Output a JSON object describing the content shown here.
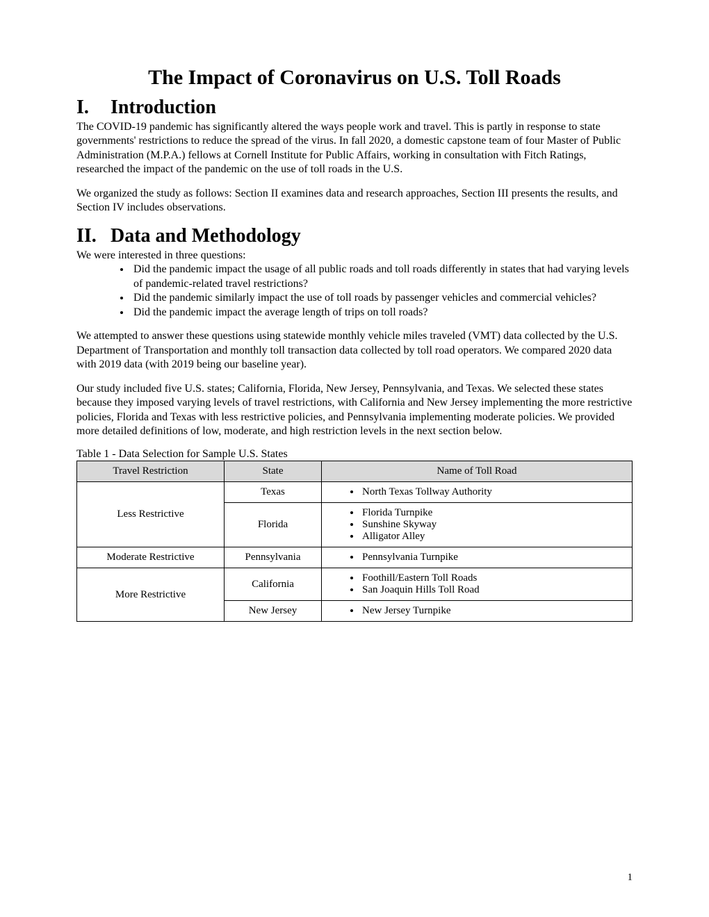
{
  "title": "The Impact of Coronavirus on U.S. Toll Roads",
  "section1": {
    "num": "I.",
    "heading": "Introduction",
    "p1": "The COVID-19 pandemic has significantly altered the ways people work and travel. This is partly in response to state governments' restrictions to reduce the spread of the virus. In fall 2020, a domestic capstone team of four Master of Public Administration (M.P.A.) fellows at Cornell Institute for Public Affairs, working in consultation with Fitch Ratings, researched the impact of the pandemic on the use of toll roads in the U.S.",
    "p2": "We organized the study as follows: Section II examines data and research approaches, Section III presents the results, and Section IV includes observations."
  },
  "section2": {
    "num": "II.",
    "heading": "Data and Methodology",
    "lead": "We were interested in three questions:",
    "q1": "Did the pandemic impact the usage of all public roads and toll roads differently in states that had varying levels of pandemic-related travel restrictions?",
    "q2": "Did the pandemic similarly impact the use of toll roads by passenger vehicles and commercial vehicles?",
    "q3": "Did the pandemic impact the average length of trips on toll roads?",
    "p1": "We attempted to answer these questions using statewide monthly vehicle miles traveled (VMT) data collected by the U.S. Department of Transportation and monthly toll transaction data collected by toll road operators. We compared 2020 data with 2019 data (with 2019 being our baseline year).",
    "p2": "Our study included five U.S. states; California, Florida, New Jersey, Pennsylvania, and Texas. We selected these states because they imposed varying levels of travel restrictions, with California and New Jersey implementing the more restrictive policies, Florida and Texas with less restrictive policies, and Pennsylvania implementing moderate policies. We provided more detailed definitions of low, moderate, and high restriction levels in the next section below."
  },
  "table1": {
    "caption": "Table 1 - Data Selection for Sample U.S. States",
    "headers": {
      "col1": "Travel Restriction",
      "col2": "State",
      "col3": "Name of Toll Road"
    },
    "groups": [
      {
        "restriction": "Less Restrictive",
        "states": [
          {
            "state": "Texas",
            "roads": [
              "North Texas Tollway Authority"
            ]
          },
          {
            "state": "Florida",
            "roads": [
              "Florida Turnpike",
              "Sunshine Skyway",
              "Alligator Alley"
            ]
          }
        ]
      },
      {
        "restriction": "Moderate Restrictive",
        "states": [
          {
            "state": "Pennsylvania",
            "roads": [
              "Pennsylvania Turnpike"
            ]
          }
        ]
      },
      {
        "restriction": "More Restrictive",
        "states": [
          {
            "state": "California",
            "roads": [
              "Foothill/Eastern Toll Roads",
              "San Joaquin Hills Toll Road"
            ]
          },
          {
            "state": "New Jersey",
            "roads": [
              "New Jersey Turnpike"
            ]
          }
        ]
      }
    ]
  },
  "pageNumber": "1"
}
